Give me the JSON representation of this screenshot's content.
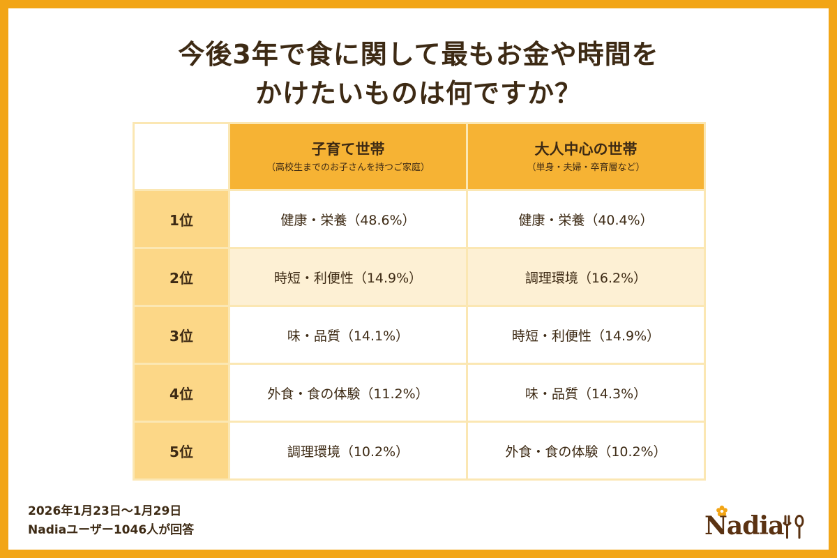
{
  "title": {
    "line1": "今後3年で食に関して最もお金や時間を",
    "line2": "かけたいものは何ですか？"
  },
  "chart_data": {
    "type": "table",
    "columns": [
      {
        "name": "子育て世帯",
        "note": "（高校生までのお子さんを持つご家庭）"
      },
      {
        "name": "大人中心の世帯",
        "note": "（単身・夫婦・卒育層など）"
      }
    ],
    "rows": [
      {
        "rank": "1位",
        "cells": [
          "健康・栄養（48.6%）",
          "健康・栄養（40.4%）"
        ],
        "values": [
          48.6,
          40.4
        ]
      },
      {
        "rank": "2位",
        "cells": [
          "時短・利便性（14.9%）",
          "調理環境（16.2%）"
        ],
        "values": [
          14.9,
          16.2
        ]
      },
      {
        "rank": "3位",
        "cells": [
          "味・品質（14.1%）",
          "時短・利便性（14.9%）"
        ],
        "values": [
          14.1,
          14.9
        ]
      },
      {
        "rank": "4位",
        "cells": [
          "外食・食の体験（11.2%）",
          "味・品質（14.3%）"
        ],
        "values": [
          11.2,
          14.3
        ]
      },
      {
        "rank": "5位",
        "cells": [
          "調理環境（10.2%）",
          "外食・食の体験（10.2%）"
        ],
        "values": [
          10.2,
          10.2
        ]
      }
    ]
  },
  "footer": {
    "period": "2026年1月23日～1月29日",
    "respondents": "Nadiaユーザー1046人が回答"
  },
  "logo": {
    "text": "Nadia"
  },
  "colors": {
    "frame": "#f2a516",
    "header": "#f6b334",
    "rank_column": "#fcd787",
    "alt_row": "#fdf0d4",
    "border": "#fbe7b3",
    "text": "#3d2a14"
  }
}
